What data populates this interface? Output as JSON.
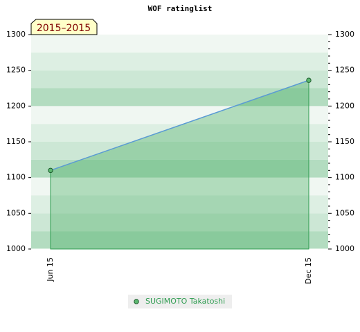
{
  "chart_data": {
    "type": "line",
    "title": "WOF ratinglist",
    "badge": "2015–2015",
    "categories": [
      "Jun 15",
      "Dec 15"
    ],
    "series": [
      {
        "name": "SUGIMOTO Takatoshi",
        "color": "#5b9bd5",
        "values": [
          1110,
          1236
        ]
      }
    ],
    "ylim": [
      1000,
      1300
    ],
    "yticks": [
      1000,
      1050,
      1100,
      1150,
      1200,
      1250,
      1300
    ],
    "y2lim": [
      1000,
      1300
    ],
    "y2ticks": [
      1000,
      1050,
      1100,
      1150,
      1200,
      1250,
      1300
    ]
  }
}
